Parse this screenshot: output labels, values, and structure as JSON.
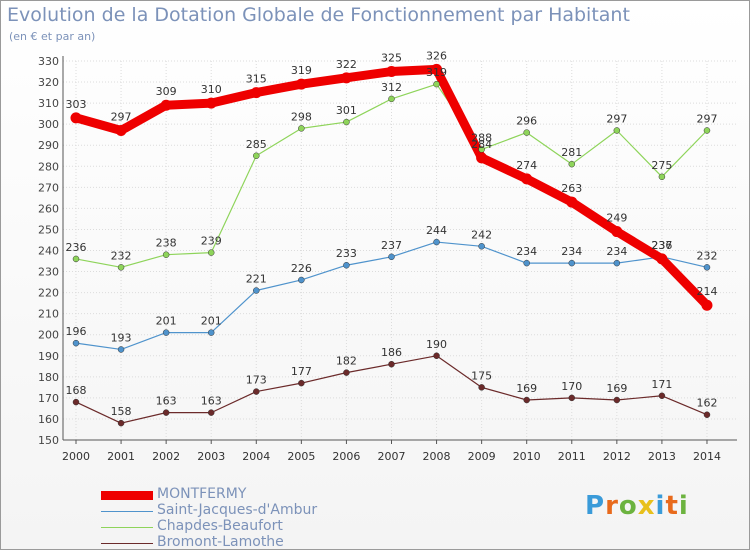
{
  "title": "Evolution de la Dotation Globale de Fonctionnement par Habitant",
  "subtitle": "(en € et par an)",
  "logo": {
    "text": "Proxiti",
    "letters": [
      "P",
      "r",
      "o",
      "x",
      "i",
      "t",
      "i"
    ],
    "colors": [
      "#3a9bd9",
      "#e86a1c",
      "#6cb33f",
      "#e8c01c",
      "#3a9bd9",
      "#e86a1c",
      "#6cb33f"
    ]
  },
  "chart_data": {
    "type": "line",
    "title": "Evolution de la Dotation Globale de Fonctionnement par Habitant",
    "subtitle": "(en € et par an)",
    "x": [
      "2000",
      "2001",
      "2002",
      "2003",
      "2004",
      "2005",
      "2006",
      "2007",
      "2008",
      "2009",
      "2010",
      "2011",
      "2012",
      "2013",
      "2014"
    ],
    "ylim": [
      150,
      330
    ],
    "yticks": [
      150,
      160,
      170,
      180,
      190,
      200,
      210,
      220,
      230,
      240,
      250,
      260,
      270,
      280,
      290,
      300,
      310,
      320,
      330
    ],
    "grid": true,
    "legend_position": "bottom-left",
    "series": [
      {
        "name": "MONTFERMY",
        "color": "#ee0000",
        "values": [
          303,
          297,
          309,
          310,
          315,
          319,
          322,
          325,
          326,
          284,
          274,
          263,
          249,
          236,
          214
        ],
        "labels": [
          "303",
          "297",
          "309",
          "310",
          "315",
          "319",
          "322",
          "325",
          "326",
          "284",
          "274",
          "263",
          "249",
          "236",
          "214"
        ]
      },
      {
        "name": "Saint-Jacques-d'Ambur",
        "color": "#4f93cc",
        "values": [
          196,
          193,
          201,
          201,
          221,
          226,
          233,
          237,
          244,
          242,
          234,
          234,
          234,
          237,
          232
        ],
        "labels": [
          "196",
          "193",
          "201",
          "201",
          "221",
          "226",
          "233",
          "237",
          "244",
          "242",
          "234",
          "234",
          "234",
          "237",
          "232"
        ]
      },
      {
        "name": "Chapdes-Beaufort",
        "color": "#8ed45a",
        "values": [
          236,
          232,
          238,
          239,
          285,
          298,
          301,
          312,
          319,
          288,
          296,
          281,
          297,
          275,
          297
        ],
        "labels": [
          "236",
          "232",
          "238",
          "239",
          "285",
          "298",
          "301",
          "312",
          "319",
          "288",
          "296",
          "281",
          "297",
          "275",
          "297"
        ]
      },
      {
        "name": "Bromont-Lamothe",
        "color": "#6b2a2a",
        "values": [
          168,
          158,
          163,
          163,
          173,
          177,
          182,
          186,
          190,
          175,
          169,
          170,
          169,
          171,
          162
        ],
        "labels": [
          "168",
          "158",
          "163",
          "163",
          "173",
          "177",
          "182",
          "186",
          "190",
          "175",
          "169",
          "170",
          "169",
          "171",
          "162"
        ]
      }
    ]
  }
}
